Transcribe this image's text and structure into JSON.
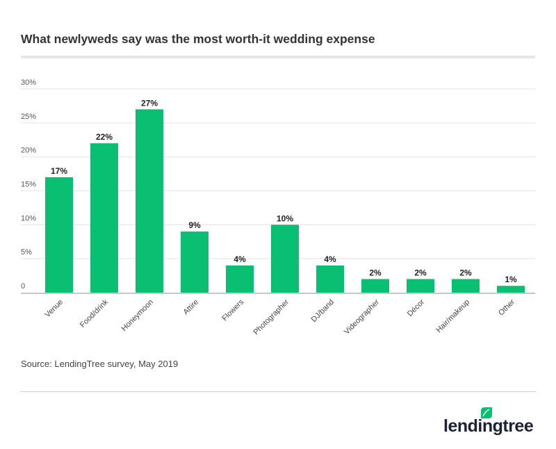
{
  "title": "What newlyweds say was the most worth-it wedding expense",
  "source": "Source: LendingTree survey, May 2019",
  "logo": {
    "text": "lendingtree",
    "color": "#1a2233",
    "leaf_color": "#0bbf72"
  },
  "chart_data": {
    "type": "bar",
    "title": "What newlyweds say was the most worth-it wedding expense",
    "categories": [
      "Venue",
      "Food/drink",
      "Honeymoon",
      "Attire",
      "Flowers",
      "Photographer",
      "DJ/band",
      "Videographer",
      "Décor",
      "Hair/makeup",
      "Other"
    ],
    "values": [
      17,
      22,
      27,
      9,
      4,
      10,
      4,
      2,
      2,
      2,
      1
    ],
    "data_labels": [
      "17%",
      "22%",
      "27%",
      "9%",
      "4%",
      "10%",
      "4%",
      "2%",
      "2%",
      "2%",
      "1%"
    ],
    "yticks": [
      0,
      5,
      10,
      15,
      20,
      25,
      30
    ],
    "ytick_labels": [
      "0",
      "5%",
      "10%",
      "15%",
      "20%",
      "25%",
      "30%"
    ],
    "ylim": [
      0,
      30
    ],
    "grid": true,
    "bar_color": "#0bbf72",
    "xlabel": "",
    "ylabel": ""
  }
}
